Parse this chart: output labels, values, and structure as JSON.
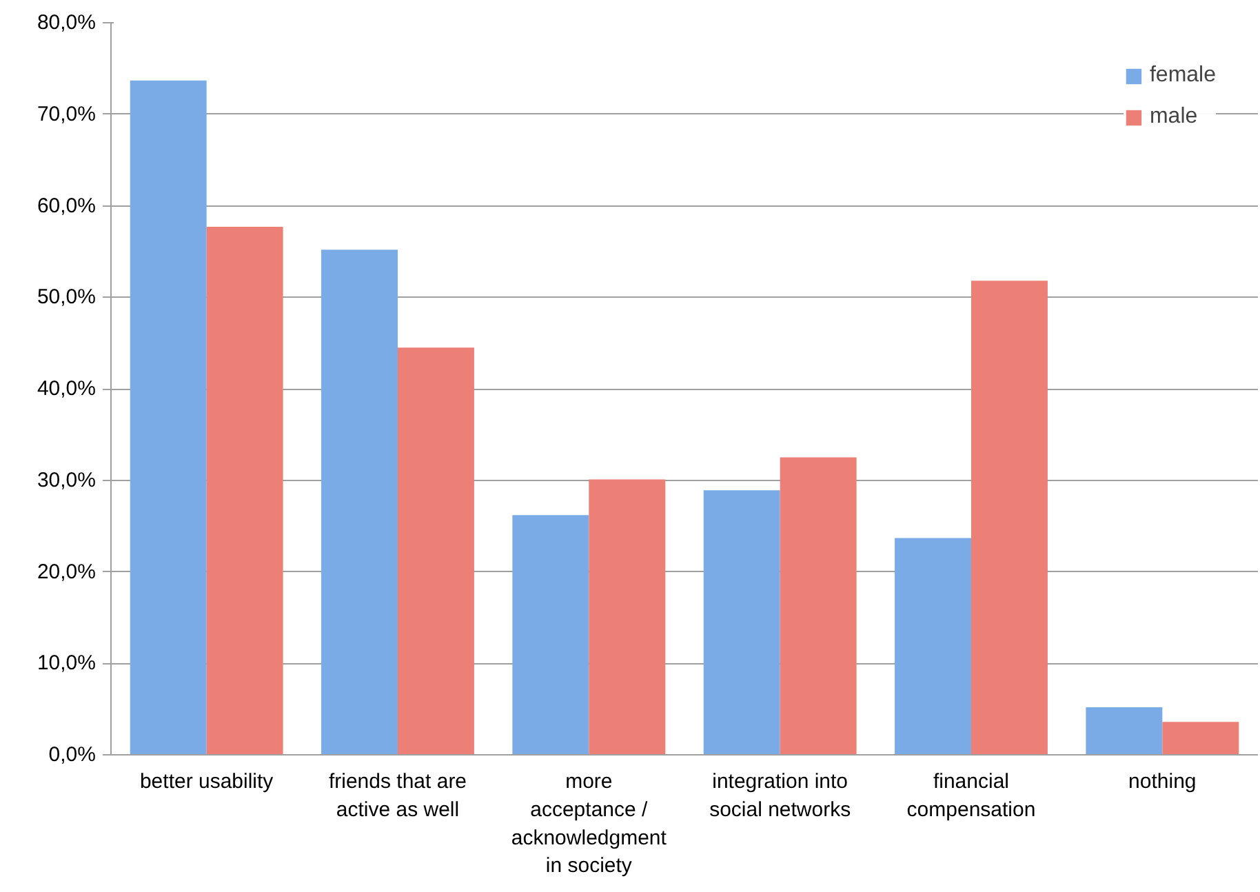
{
  "chart_data": {
    "type": "bar",
    "categories": [
      "better usability",
      "friends that are\nactive as well",
      "more\nacceptance /\nacknowledgment\nin society",
      "integration into\nsocial networks",
      "financial\ncompensation",
      "nothing"
    ],
    "series": [
      {
        "name": "female",
        "color": "#7aabe6",
        "values": [
          73.7,
          55.2,
          26.2,
          28.9,
          23.7,
          5.2
        ]
      },
      {
        "name": "male",
        "color": "#ec7f76",
        "values": [
          57.7,
          44.5,
          30.1,
          32.5,
          51.8,
          3.6
        ]
      }
    ],
    "ylim": [
      0,
      80
    ],
    "yticks": [
      {
        "value": 0,
        "label": "0,0%"
      },
      {
        "value": 10,
        "label": "10,0%"
      },
      {
        "value": 20,
        "label": "20,0%"
      },
      {
        "value": 30,
        "label": "30,0%"
      },
      {
        "value": 40,
        "label": "40,0%"
      },
      {
        "value": 50,
        "label": "50,0%"
      },
      {
        "value": 60,
        "label": "60,0%"
      },
      {
        "value": 70,
        "label": "70,0%"
      },
      {
        "value": 80,
        "label": "80,0%"
      }
    ],
    "grid": "y",
    "legend": "top right"
  }
}
